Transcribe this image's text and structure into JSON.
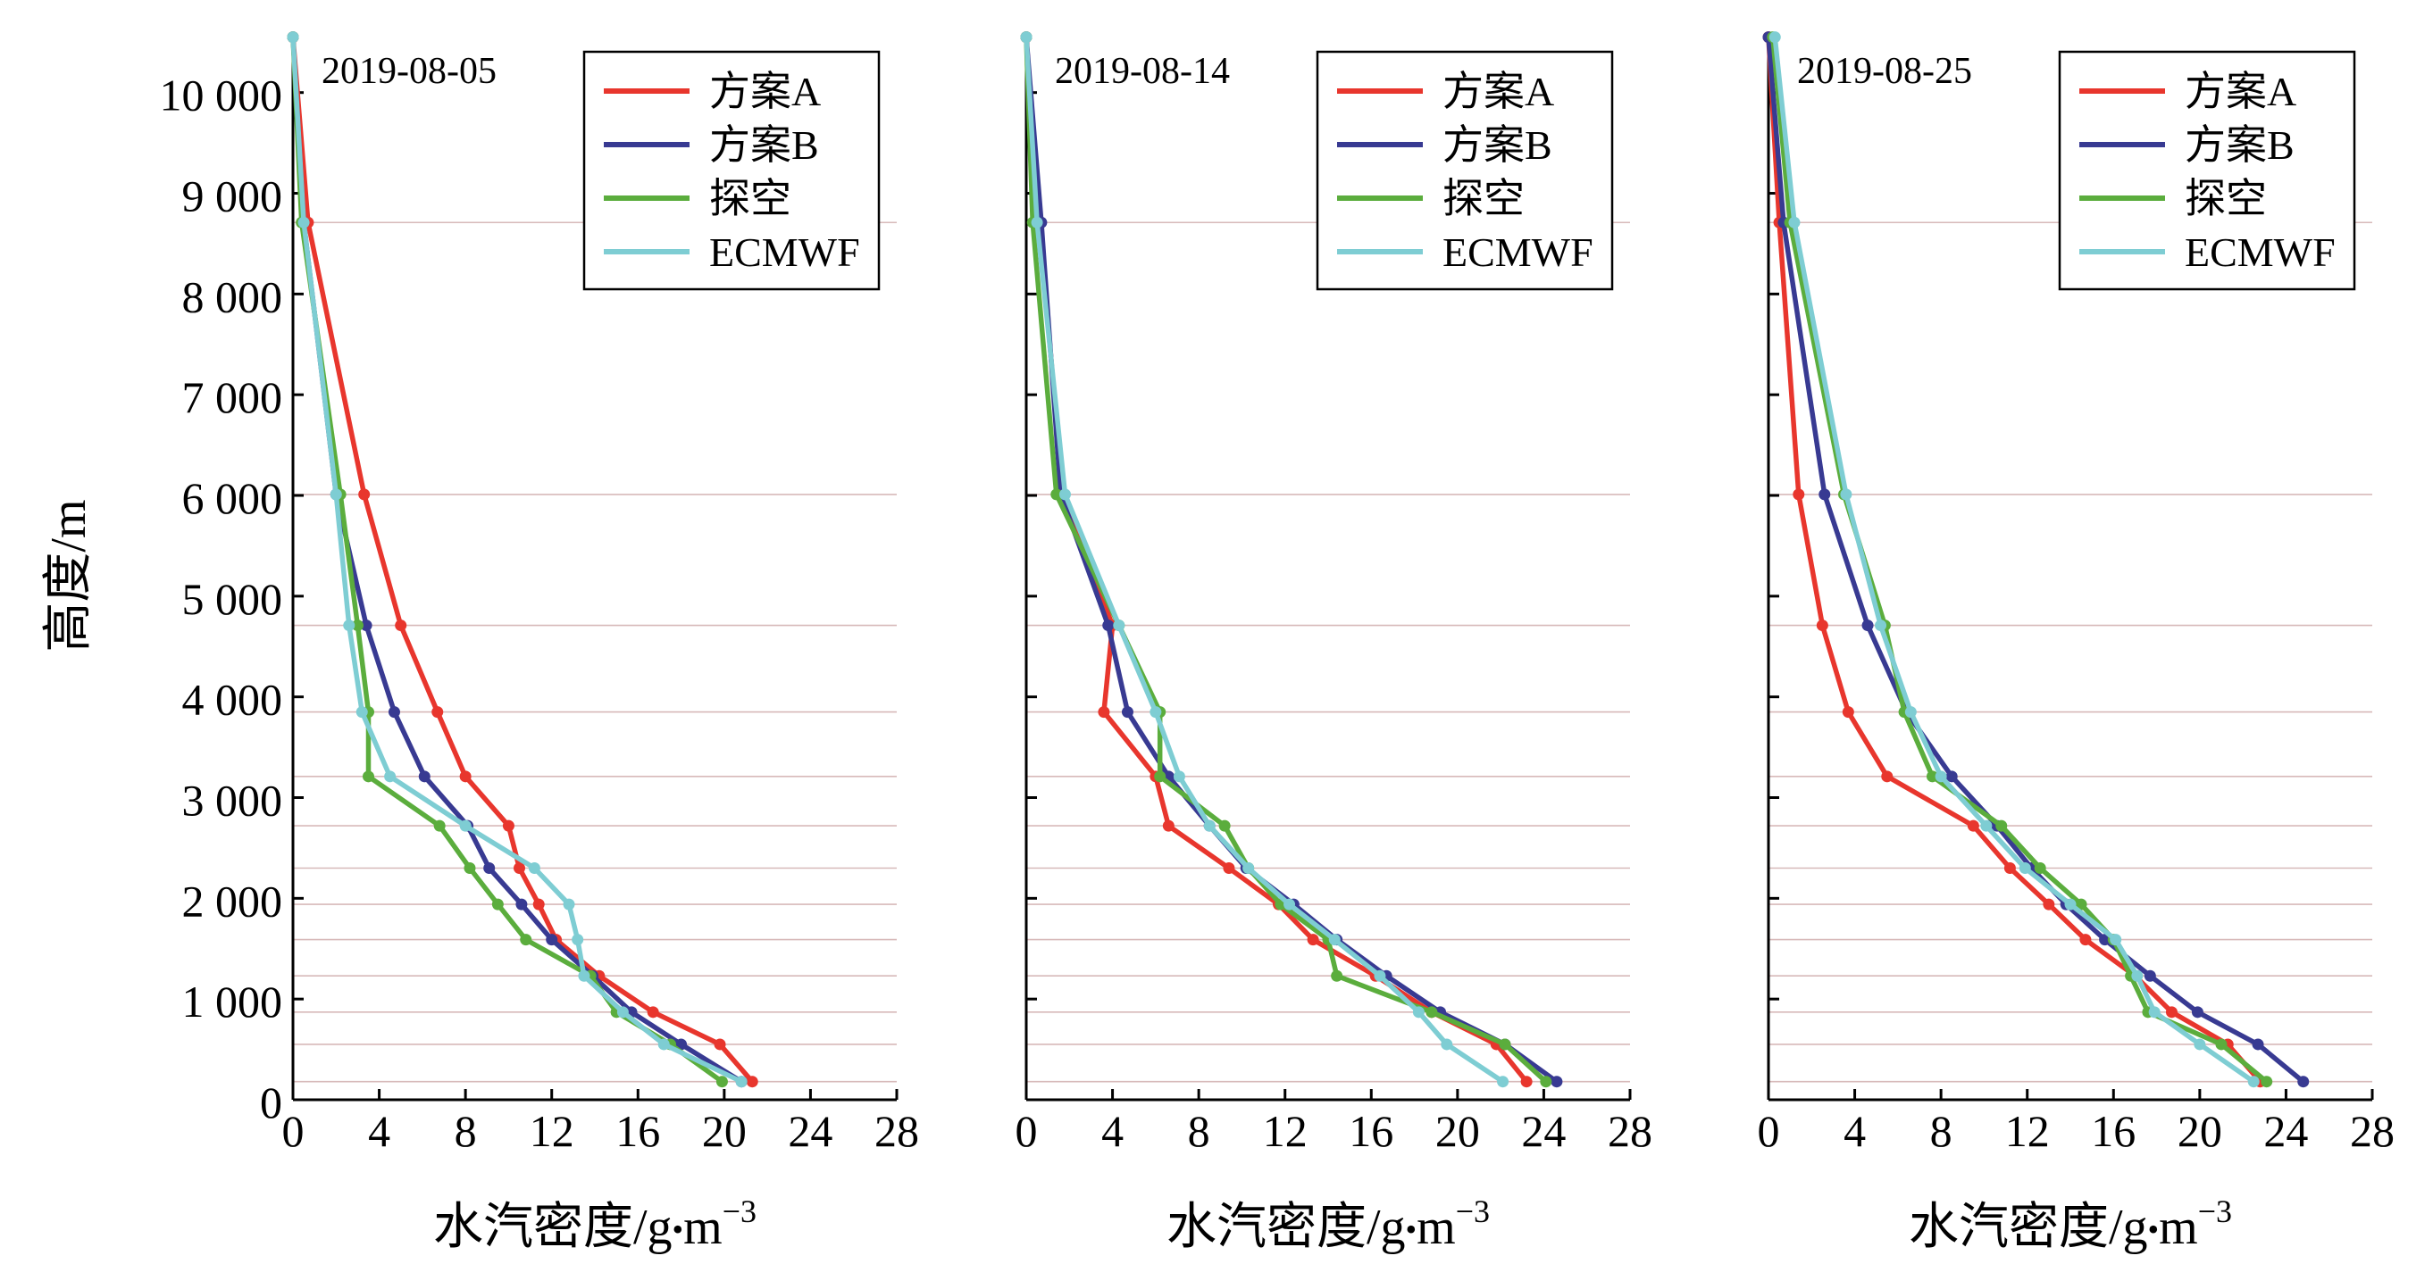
{
  "figure": {
    "ylabel": "高度/m",
    "xlabel_prefix": "水汽密度/g",
    "xlabel_dot": "•",
    "xlabel_unit": "m",
    "xlabel_exp": "−3"
  },
  "chart_data": [
    {
      "type": "line",
      "title": "2019-08-05",
      "xlabel": "水汽密度/g•m−3",
      "ylabel": "高度/m",
      "xlim": [
        0,
        28
      ],
      "ylim": [
        0,
        10600
      ],
      "xticks": [
        0,
        4,
        8,
        12,
        16,
        20,
        24,
        28
      ],
      "yticks": [
        0,
        1000,
        2000,
        3000,
        4000,
        5000,
        6000,
        7000,
        8000,
        9000,
        10000
      ],
      "ytick_labels": [
        "0",
        "1 000",
        "2 000",
        "3 000",
        "4 000",
        "5 000",
        "6 000",
        "7 000",
        "8 000",
        "9 000",
        "10 000"
      ],
      "gridlines_y": [
        180,
        550,
        870,
        1230,
        1590,
        1940,
        2300,
        2720,
        3210,
        3850,
        4710,
        6010,
        8710
      ],
      "legend": [
        "方案A",
        "方案B",
        "探空",
        "ECMWF"
      ],
      "series": [
        {
          "name": "方案A",
          "color": "#e8362d",
          "x": [
            21.3,
            19.8,
            16.7,
            14.2,
            12.2,
            11.4,
            10.5,
            10.0,
            8.0,
            6.7,
            5.0,
            3.3,
            0.7,
            0.0
          ],
          "y": [
            180,
            550,
            870,
            1230,
            1590,
            1940,
            2300,
            2720,
            3210,
            3850,
            4710,
            6010,
            8710,
            10550
          ]
        },
        {
          "name": "方案B",
          "color": "#383a92",
          "x": [
            20.8,
            18.0,
            15.7,
            13.9,
            12.0,
            10.6,
            9.1,
            8.1,
            6.1,
            4.7,
            3.4,
            2.0,
            0.5,
            0.0
          ],
          "y": [
            180,
            550,
            870,
            1230,
            1590,
            1940,
            2300,
            2720,
            3210,
            3850,
            4710,
            6010,
            8710,
            10550
          ]
        },
        {
          "name": "探空",
          "color": "#5bad3d",
          "x": [
            19.9,
            17.5,
            15.0,
            13.8,
            10.8,
            9.5,
            8.2,
            6.8,
            3.5,
            3.5,
            3.0,
            2.2,
            0.4,
            0.0
          ],
          "y": [
            180,
            550,
            870,
            1230,
            1590,
            1940,
            2300,
            2720,
            3210,
            3850,
            4710,
            6010,
            8710,
            10550
          ]
        },
        {
          "name": "ECMWF",
          "color": "#7ecdd3",
          "x": [
            20.8,
            17.2,
            15.3,
            13.5,
            13.2,
            12.8,
            11.2,
            8.0,
            4.5,
            3.2,
            2.6,
            2.0,
            0.5,
            0.0
          ],
          "y": [
            180,
            550,
            870,
            1230,
            1590,
            1940,
            2300,
            2720,
            3210,
            3850,
            4710,
            6010,
            8710,
            10550
          ]
        }
      ]
    },
    {
      "type": "line",
      "title": "2019-08-14",
      "xlabel": "水汽密度/g•m−3",
      "ylabel": "高度/m",
      "xlim": [
        0,
        28
      ],
      "ylim": [
        0,
        10600
      ],
      "xticks": [
        0,
        4,
        8,
        12,
        16,
        20,
        24,
        28
      ],
      "yticks": [
        0,
        1000,
        2000,
        3000,
        4000,
        5000,
        6000,
        7000,
        8000,
        9000,
        10000
      ],
      "ytick_labels": [
        "",
        "",
        "",
        "",
        "",
        "",
        "",
        "",
        "",
        "",
        ""
      ],
      "gridlines_y": [
        180,
        550,
        870,
        1230,
        1590,
        1940,
        2300,
        2720,
        3210,
        3850,
        4710,
        6010,
        8710
      ],
      "legend": [
        "方案A",
        "方案B",
        "探空",
        "ECMWF"
      ],
      "series": [
        {
          "name": "方案A",
          "color": "#e8362d",
          "x": [
            23.2,
            21.8,
            18.8,
            16.2,
            13.3,
            11.7,
            9.4,
            6.6,
            6.0,
            3.6,
            4.0,
            1.7,
            0.6,
            0.0
          ],
          "y": [
            180,
            550,
            870,
            1230,
            1590,
            1940,
            2300,
            2720,
            3210,
            3850,
            4710,
            6010,
            8710,
            10550
          ]
        },
        {
          "name": "方案B",
          "color": "#383a92",
          "x": [
            24.6,
            22.2,
            19.2,
            16.7,
            14.4,
            12.4,
            10.2,
            8.5,
            6.6,
            4.7,
            3.8,
            1.6,
            0.7,
            0.0
          ],
          "y": [
            180,
            550,
            870,
            1230,
            1590,
            1940,
            2300,
            2720,
            3210,
            3850,
            4710,
            6010,
            8710,
            10550
          ]
        },
        {
          "name": "探空",
          "color": "#5bad3d",
          "x": [
            24.1,
            22.2,
            18.8,
            14.4,
            14.0,
            11.8,
            10.3,
            9.2,
            6.2,
            6.2,
            4.3,
            1.4,
            0.3,
            0.0
          ],
          "y": [
            180,
            550,
            870,
            1230,
            1590,
            1940,
            2300,
            2720,
            3210,
            3850,
            4710,
            6010,
            8710,
            10550
          ]
        },
        {
          "name": "ECMWF",
          "color": "#7ecdd3",
          "x": [
            22.1,
            19.5,
            18.2,
            16.4,
            14.3,
            12.2,
            10.3,
            8.5,
            7.1,
            6.0,
            4.3,
            1.8,
            0.5,
            0.0
          ],
          "y": [
            180,
            550,
            870,
            1230,
            1590,
            1940,
            2300,
            2720,
            3210,
            3850,
            4710,
            6010,
            8710,
            10550
          ]
        }
      ]
    },
    {
      "type": "line",
      "title": "2019-08-25",
      "xlabel": "水汽密度/g•m−3",
      "ylabel": "高度/m",
      "xlim": [
        0,
        28
      ],
      "ylim": [
        0,
        10600
      ],
      "xticks": [
        0,
        4,
        8,
        12,
        16,
        20,
        24,
        28
      ],
      "yticks": [
        0,
        1000,
        2000,
        3000,
        4000,
        5000,
        6000,
        7000,
        8000,
        9000,
        10000
      ],
      "ytick_labels": [
        "",
        "",
        "",
        "",
        "",
        "",
        "",
        "",
        "",
        "",
        ""
      ],
      "gridlines_y": [
        180,
        550,
        870,
        1230,
        1590,
        1940,
        2300,
        2720,
        3210,
        3850,
        4710,
        6010,
        8710
      ],
      "legend": [
        "方案A",
        "方案B",
        "探空",
        "ECMWF"
      ],
      "series": [
        {
          "name": "方案A",
          "color": "#e8362d",
          "x": [
            22.8,
            21.3,
            18.7,
            17.0,
            14.7,
            13.0,
            11.2,
            9.5,
            5.5,
            3.7,
            2.5,
            1.4,
            0.5,
            0.0
          ],
          "y": [
            180,
            550,
            870,
            1230,
            1590,
            1940,
            2300,
            2720,
            3210,
            3850,
            4710,
            6010,
            8710,
            10550
          ]
        },
        {
          "name": "方案B",
          "color": "#383a92",
          "x": [
            24.8,
            22.7,
            19.9,
            17.7,
            15.6,
            13.8,
            12.2,
            10.6,
            8.5,
            6.4,
            4.6,
            2.6,
            0.7,
            0.0
          ],
          "y": [
            180,
            550,
            870,
            1230,
            1590,
            1940,
            2300,
            2720,
            3210,
            3850,
            4710,
            6010,
            8710,
            10550
          ]
        },
        {
          "name": "探空",
          "color": "#5bad3d",
          "x": [
            23.1,
            21.0,
            17.6,
            16.8,
            16.0,
            14.5,
            12.6,
            10.8,
            7.6,
            6.3,
            5.4,
            3.5,
            1.0,
            0.2
          ],
          "y": [
            180,
            550,
            870,
            1230,
            1590,
            1940,
            2300,
            2720,
            3210,
            3850,
            4710,
            6010,
            8710,
            10550
          ]
        },
        {
          "name": "ECMWF",
          "color": "#7ecdd3",
          "x": [
            22.5,
            20.0,
            17.9,
            17.1,
            16.1,
            14.0,
            11.9,
            10.1,
            8.0,
            6.6,
            5.2,
            3.6,
            1.2,
            0.3
          ],
          "y": [
            180,
            550,
            870,
            1230,
            1590,
            1940,
            2300,
            2720,
            3210,
            3850,
            4710,
            6010,
            8710,
            10550
          ]
        }
      ]
    }
  ]
}
